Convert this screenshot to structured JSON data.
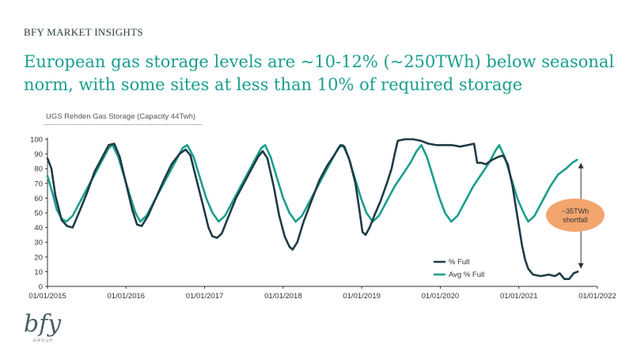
{
  "header": {
    "brand": "BFY MARKET INSIGHTS"
  },
  "headline": "European gas storage levels are ~10-12% (~250TWh) below seasonal norm, with some sites at less than 10% of required storage",
  "chart_tag": "UGS Rehden Gas Storage (Capacity 44Twh)",
  "logo": {
    "mark": "bfy",
    "sub": "GROUP"
  },
  "colors": {
    "teal": "#1a9e8f",
    "navy": "#1f3b45",
    "callout": "#f2a66e",
    "axis": "#333333"
  },
  "chart_data": {
    "type": "line",
    "title": "",
    "xlabel": "",
    "ylabel": "",
    "xlim": [
      2015.0,
      2022.0
    ],
    "ylim": [
      0,
      100
    ],
    "y_ticks": [
      0,
      10,
      20,
      30,
      40,
      50,
      60,
      70,
      80,
      90,
      100
    ],
    "x_ticks": [
      {
        "value": 2015,
        "label": "01/01/2015"
      },
      {
        "value": 2016,
        "label": "01/01/2016"
      },
      {
        "value": 2017,
        "label": "01/01/2017"
      },
      {
        "value": 2018,
        "label": "01/01/2018"
      },
      {
        "value": 2019,
        "label": "01/01/2019"
      },
      {
        "value": 2020,
        "label": "01/01/2020"
      },
      {
        "value": 2021,
        "label": "01/01/2021"
      },
      {
        "value": 2022,
        "label": "01/01/2022"
      }
    ],
    "grid": false,
    "legend": {
      "placement": "bottom-right"
    },
    "series": [
      {
        "name": "% Full",
        "color": "#1f3b45",
        "points": [
          [
            2015.0,
            87
          ],
          [
            2015.05,
            80
          ],
          [
            2015.1,
            62
          ],
          [
            2015.18,
            45
          ],
          [
            2015.25,
            41
          ],
          [
            2015.32,
            40
          ],
          [
            2015.4,
            50
          ],
          [
            2015.5,
            63
          ],
          [
            2015.6,
            78
          ],
          [
            2015.7,
            88
          ],
          [
            2015.78,
            96
          ],
          [
            2015.85,
            97
          ],
          [
            2015.92,
            88
          ],
          [
            2016.0,
            70
          ],
          [
            2016.08,
            52
          ],
          [
            2016.14,
            42
          ],
          [
            2016.2,
            41
          ],
          [
            2016.28,
            48
          ],
          [
            2016.38,
            60
          ],
          [
            2016.48,
            72
          ],
          [
            2016.58,
            83
          ],
          [
            2016.68,
            90
          ],
          [
            2016.76,
            93
          ],
          [
            2016.82,
            89
          ],
          [
            2016.9,
            72
          ],
          [
            2016.98,
            55
          ],
          [
            2017.05,
            40
          ],
          [
            2017.1,
            34
          ],
          [
            2017.16,
            33
          ],
          [
            2017.22,
            36
          ],
          [
            2017.3,
            47
          ],
          [
            2017.4,
            60
          ],
          [
            2017.5,
            70
          ],
          [
            2017.6,
            80
          ],
          [
            2017.68,
            88
          ],
          [
            2017.74,
            92
          ],
          [
            2017.8,
            87
          ],
          [
            2017.88,
            68
          ],
          [
            2017.95,
            48
          ],
          [
            2018.02,
            34
          ],
          [
            2018.08,
            27
          ],
          [
            2018.12,
            25
          ],
          [
            2018.18,
            30
          ],
          [
            2018.26,
            44
          ],
          [
            2018.36,
            58
          ],
          [
            2018.46,
            72
          ],
          [
            2018.56,
            82
          ],
          [
            2018.66,
            90
          ],
          [
            2018.73,
            96
          ],
          [
            2018.78,
            95
          ],
          [
            2018.85,
            85
          ],
          [
            2018.92,
            70
          ],
          [
            2018.97,
            52
          ],
          [
            2019.01,
            37
          ],
          [
            2019.05,
            35
          ],
          [
            2019.1,
            40
          ],
          [
            2019.16,
            48
          ],
          [
            2019.24,
            58
          ],
          [
            2019.32,
            70
          ],
          [
            2019.38,
            80
          ],
          [
            2019.42,
            90
          ],
          [
            2019.46,
            99
          ],
          [
            2019.55,
            100
          ],
          [
            2019.65,
            100
          ],
          [
            2019.75,
            99
          ],
          [
            2019.85,
            97
          ],
          [
            2019.95,
            96
          ],
          [
            2020.05,
            96
          ],
          [
            2020.15,
            96
          ],
          [
            2020.25,
            95
          ],
          [
            2020.35,
            96
          ],
          [
            2020.43,
            97
          ],
          [
            2020.47,
            84
          ],
          [
            2020.52,
            84
          ],
          [
            2020.58,
            83
          ],
          [
            2020.66,
            86
          ],
          [
            2020.74,
            88
          ],
          [
            2020.8,
            89
          ],
          [
            2020.86,
            83
          ],
          [
            2020.92,
            68
          ],
          [
            2020.98,
            48
          ],
          [
            2021.04,
            28
          ],
          [
            2021.08,
            18
          ],
          [
            2021.12,
            12
          ],
          [
            2021.18,
            8
          ],
          [
            2021.28,
            7
          ],
          [
            2021.38,
            8
          ],
          [
            2021.46,
            7
          ],
          [
            2021.52,
            9
          ],
          [
            2021.58,
            5
          ],
          [
            2021.64,
            5
          ],
          [
            2021.7,
            9
          ],
          [
            2021.75,
            10
          ]
        ]
      },
      {
        "name": "Avg % Full",
        "color": "#1a9e8f",
        "points": [
          [
            2015.0,
            75
          ],
          [
            2015.06,
            64
          ],
          [
            2015.12,
            52
          ],
          [
            2015.18,
            46
          ],
          [
            2015.24,
            44
          ],
          [
            2015.32,
            48
          ],
          [
            2015.42,
            58
          ],
          [
            2015.52,
            68
          ],
          [
            2015.62,
            78
          ],
          [
            2015.7,
            86
          ],
          [
            2015.78,
            94
          ],
          [
            2015.83,
            96
          ],
          [
            2015.9,
            88
          ],
          [
            2015.98,
            74
          ],
          [
            2016.06,
            60
          ],
          [
            2016.12,
            50
          ],
          [
            2016.18,
            44
          ],
          [
            2016.26,
            48
          ],
          [
            2016.36,
            58
          ],
          [
            2016.46,
            68
          ],
          [
            2016.56,
            78
          ],
          [
            2016.64,
            86
          ],
          [
            2016.72,
            94
          ],
          [
            2016.78,
            96
          ],
          [
            2016.86,
            88
          ],
          [
            2016.94,
            74
          ],
          [
            2017.02,
            60
          ],
          [
            2017.1,
            50
          ],
          [
            2017.18,
            44
          ],
          [
            2017.26,
            48
          ],
          [
            2017.36,
            58
          ],
          [
            2017.46,
            68
          ],
          [
            2017.56,
            78
          ],
          [
            2017.64,
            86
          ],
          [
            2017.72,
            94
          ],
          [
            2017.77,
            96
          ],
          [
            2017.84,
            88
          ],
          [
            2017.92,
            74
          ],
          [
            2018.0,
            60
          ],
          [
            2018.08,
            50
          ],
          [
            2018.16,
            44
          ],
          [
            2018.24,
            48
          ],
          [
            2018.34,
            58
          ],
          [
            2018.44,
            68
          ],
          [
            2018.54,
            78
          ],
          [
            2018.62,
            86
          ],
          [
            2018.7,
            94
          ],
          [
            2018.76,
            96
          ],
          [
            2018.83,
            88
          ],
          [
            2018.91,
            74
          ],
          [
            2018.99,
            60
          ],
          [
            2019.06,
            50
          ],
          [
            2019.14,
            44
          ],
          [
            2019.22,
            48
          ],
          [
            2019.32,
            58
          ],
          [
            2019.42,
            68
          ],
          [
            2019.52,
            76
          ],
          [
            2019.62,
            84
          ],
          [
            2019.7,
            92
          ],
          [
            2019.76,
            96
          ],
          [
            2019.83,
            88
          ],
          [
            2019.91,
            74
          ],
          [
            2019.99,
            60
          ],
          [
            2020.06,
            50
          ],
          [
            2020.14,
            44
          ],
          [
            2020.22,
            48
          ],
          [
            2020.32,
            58
          ],
          [
            2020.42,
            68
          ],
          [
            2020.52,
            76
          ],
          [
            2020.62,
            84
          ],
          [
            2020.7,
            92
          ],
          [
            2020.75,
            96
          ],
          [
            2020.82,
            88
          ],
          [
            2020.9,
            74
          ],
          [
            2020.98,
            60
          ],
          [
            2021.06,
            50
          ],
          [
            2021.12,
            44
          ],
          [
            2021.2,
            48
          ],
          [
            2021.3,
            58
          ],
          [
            2021.4,
            68
          ],
          [
            2021.5,
            76
          ],
          [
            2021.6,
            80
          ],
          [
            2021.68,
            84
          ],
          [
            2021.74,
            86
          ]
        ]
      }
    ],
    "annotation": {
      "text_line1": "~35TWh",
      "text_line2": "shortfall",
      "x": 2021.75,
      "y_from": 12,
      "y_to": 84
    }
  }
}
